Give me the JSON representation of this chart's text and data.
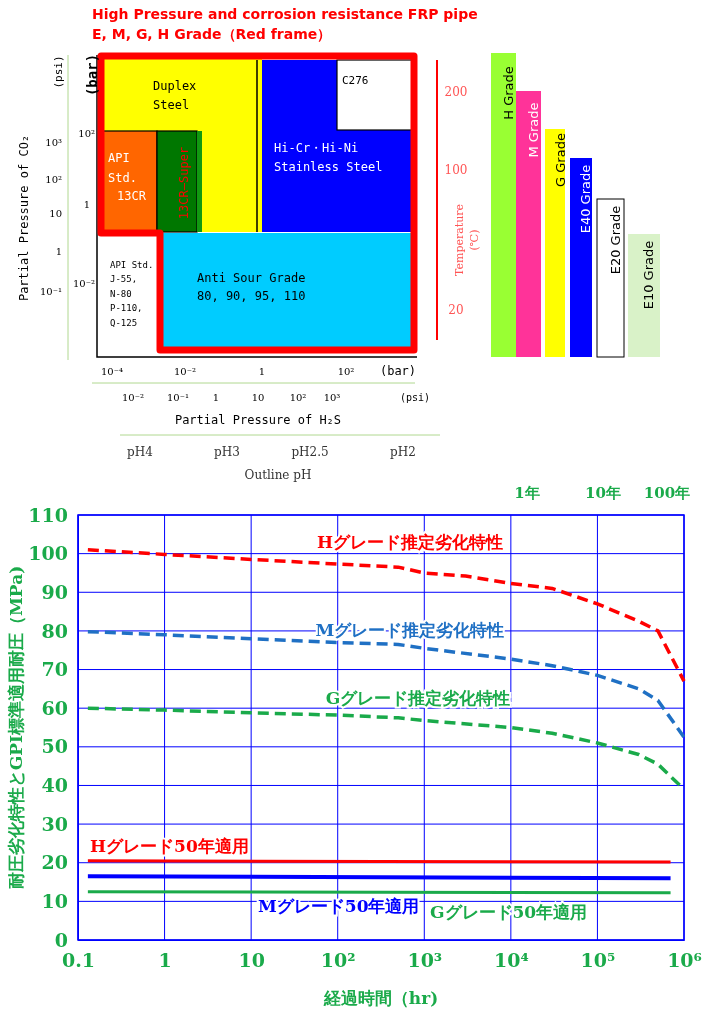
{
  "chart_data": [
    {
      "type": "other",
      "title": "High Pressure and corrosion resistance FRP pipe",
      "subtitle": "E, M, G, H Grade（Red frame）",
      "annotations": [
        "Duplex",
        "Steel",
        "C276",
        "API",
        "Std.",
        "13CR",
        "13CR—Super",
        "Hi-Cr・Hi-Ni",
        "Stainless Steel",
        "API Std.",
        "J-55,",
        "N-80",
        "P-110,",
        "Q-125",
        "Anti Sour Grade",
        "80, 90, 95, 110",
        "(bar)",
        "(psi)",
        "Partial Pressure of CO₂",
        "10²",
        "1",
        "10⁻²",
        "10³",
        "10²",
        "10",
        "1",
        "10⁻¹",
        "10⁻⁴",
        "10⁻²",
        "1",
        "10²",
        "(bar)",
        "10⁻²",
        "10⁻¹",
        "1",
        "10",
        "10²",
        "10³",
        "(psi)",
        "Partial Pressure of H₂S",
        "pH4",
        "pH3",
        "pH2.5",
        "pH2",
        "Outline pH",
        "Temperature",
        "(℃)",
        "200",
        "100",
        "20",
        "H Grade",
        "M Grade",
        "G Grade",
        "E40 Grade",
        "E20 Grade",
        "E10 Grade"
      ]
    },
    {
      "type": "line",
      "xlabel": "経過時間（hr)",
      "ylabel": "耐圧劣化特性とGPI標準適用耐圧（MPa)",
      "log": "x",
      "grid": true,
      "legend": false,
      "xlim": [
        0.1,
        1000000
      ],
      "xticks": [
        0.1,
        1,
        10,
        {
          "value": 100,
          "label": "10²"
        },
        {
          "value": 1000,
          "label": "10³"
        },
        {
          "value": 10000,
          "label": "10⁴"
        },
        {
          "value": 100000,
          "label": "10⁵"
        },
        {
          "value": 1000000,
          "label": "10⁶"
        }
      ],
      "annotations": [
        "1年",
        "10年",
        "100年"
      ],
      "ylim": [
        0,
        110
      ],
      "yticks": [
        0,
        10,
        20,
        30,
        40,
        50,
        60,
        70,
        80,
        90,
        100,
        110
      ],
      "series": [
        {
          "name": "Hグレード推定劣化特性",
          "color": "#ff0000",
          "line_style": "dashed",
          "x": [
            0.13,
            1,
            10,
            100,
            500,
            1000,
            3000,
            10000,
            30000,
            100000,
            300000,
            500000,
            1000000
          ],
          "values": [
            101,
            99.8,
            98.5,
            97.3,
            96.5,
            95,
            94.2,
            92.3,
            91,
            87,
            82.5,
            80,
            67
          ]
        },
        {
          "name": "Mグレード推定劣化特性",
          "color": "#1f70c4",
          "line_style": "dashed",
          "x": [
            0.13,
            1,
            10,
            100,
            500,
            1000,
            10000,
            30000,
            100000,
            300000,
            500000,
            1000000
          ],
          "values": [
            79.8,
            79,
            78,
            77,
            76.5,
            75.5,
            72.7,
            71,
            68.5,
            65,
            62,
            52.5
          ]
        },
        {
          "name": "Gグレード推定劣化特性",
          "color": "#1aaa4a",
          "line_style": "dashed",
          "x": [
            0.13,
            1,
            10,
            100,
            500,
            1000,
            10000,
            30000,
            100000,
            300000,
            500000,
            1000000
          ],
          "values": [
            60,
            59.5,
            58.8,
            58.2,
            57.5,
            56.8,
            55,
            53.5,
            51,
            48,
            45.5,
            39
          ]
        },
        {
          "name": "Hグレード50年適用",
          "color": "#ff0000",
          "line_style": "solid",
          "x": [
            0.13,
            700000
          ],
          "values": [
            20.5,
            20.2
          ]
        },
        {
          "name": "Mグレード50年適用",
          "color": "#0000ff",
          "line_style": "solid",
          "x": [
            0.13,
            700000
          ],
          "values": [
            16.5,
            16
          ]
        },
        {
          "name": "Gグレード50年適用",
          "color": "#1aaa4a",
          "line_style": "solid",
          "x": [
            0.13,
            700000
          ],
          "values": [
            12.5,
            12.2
          ]
        }
      ]
    }
  ]
}
